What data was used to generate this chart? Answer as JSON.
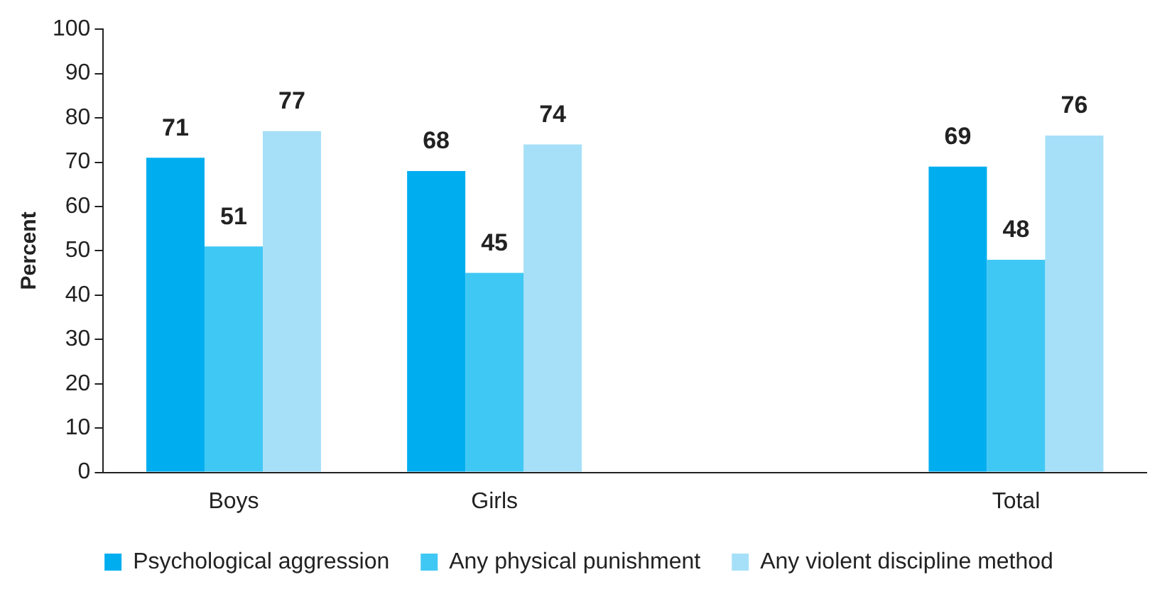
{
  "chart_data": {
    "type": "bar",
    "ylabel": "Percent",
    "categories": [
      "Boys",
      "Girls",
      null,
      "Total"
    ],
    "series": [
      {
        "name": "Psychological aggression",
        "color": "#00aeef",
        "values": [
          71,
          68,
          null,
          69
        ]
      },
      {
        "name": "Any physical punishment",
        "color": "#40c8f4",
        "values": [
          51,
          45,
          null,
          48
        ]
      },
      {
        "name": "Any violent discipline method",
        "color": "#a6e0f8",
        "values": [
          77,
          74,
          null,
          76
        ]
      }
    ],
    "ylim": [
      0,
      100
    ],
    "yticks": [
      0,
      10,
      20,
      30,
      40,
      50,
      60,
      70,
      80,
      90,
      100
    ],
    "grid": false,
    "legend": "bottom",
    "data_labels": true
  }
}
